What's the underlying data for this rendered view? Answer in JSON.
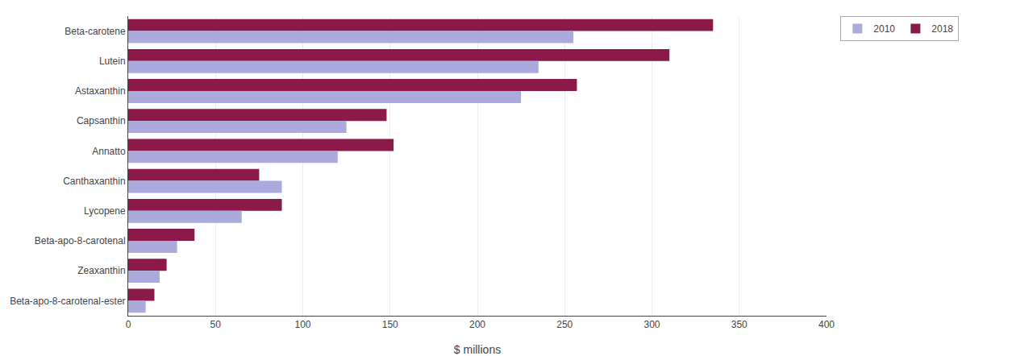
{
  "chart_data": {
    "type": "bar",
    "orientation": "horizontal",
    "categories": [
      "Beta-carotene",
      "Lutein",
      "Astaxanthin",
      "Capsanthin",
      "Annatto",
      "Canthaxanthin",
      "Lycopene",
      "Beta-apo-8-carotenal",
      "Zeaxanthin",
      "Beta-apo-8-carotenal-ester"
    ],
    "series": [
      {
        "name": "2018",
        "color": "#8b1a4a",
        "values": [
          335,
          310,
          257,
          148,
          152,
          75,
          88,
          38,
          22,
          15
        ]
      },
      {
        "name": "2010",
        "color": "#aaaadd",
        "values": [
          255,
          235,
          225,
          125,
          120,
          88,
          65,
          28,
          18,
          10
        ]
      }
    ],
    "xlabel": "$ millions",
    "xlim": [
      0,
      400
    ],
    "xticks": [
      0,
      50,
      100,
      150,
      200,
      250,
      300,
      350,
      400
    ],
    "grid": true,
    "legend": "upper right"
  }
}
